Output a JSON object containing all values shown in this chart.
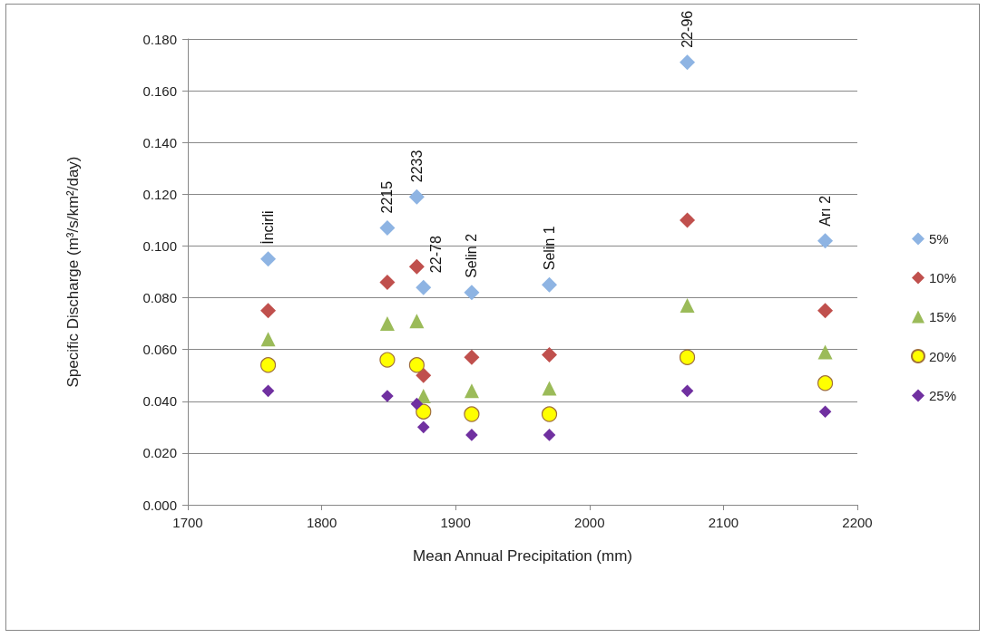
{
  "chart_data": {
    "type": "scatter",
    "xlabel": "Mean Annual Precipitation (mm)",
    "ylabel": "Specific Discharge (m³/s/km²/day)",
    "x": [
      1760,
      1849,
      1871,
      1876,
      1912,
      1970,
      2073,
      2176
    ],
    "series": [
      {
        "name": "5%",
        "color": "#8eb4e3",
        "marker": "diamond",
        "values": [
          0.095,
          0.107,
          0.119,
          0.084,
          0.082,
          0.085,
          0.171,
          0.102
        ]
      },
      {
        "name": "10%",
        "color": "#c0504d",
        "marker": "diamond",
        "values": [
          0.075,
          0.086,
          0.092,
          0.05,
          0.057,
          0.058,
          0.11,
          0.075
        ]
      },
      {
        "name": "15%",
        "color": "#9bbb59",
        "marker": "triangle",
        "values": [
          0.064,
          0.07,
          0.071,
          0.042,
          0.044,
          0.045,
          0.077,
          0.059
        ]
      },
      {
        "name": "20%",
        "color": "#ffff00",
        "marker": "circle",
        "values": [
          0.054,
          0.056,
          0.054,
          0.036,
          0.035,
          0.035,
          0.057,
          0.047
        ]
      },
      {
        "name": "25%",
        "color": "#7030a0",
        "marker": "diamond",
        "values": [
          0.044,
          0.042,
          0.039,
          0.03,
          0.027,
          0.027,
          0.044,
          0.036
        ]
      }
    ],
    "annotations": [
      {
        "text": "İncirli",
        "x": 1760,
        "y": 0.095
      },
      {
        "text": "2215",
        "x": 1849,
        "y": 0.107
      },
      {
        "text": "2233",
        "x": 1871,
        "y": 0.119
      },
      {
        "text": "22-78",
        "x": 1876,
        "y": 0.084
      },
      {
        "text": "Selin 2",
        "x": 1912,
        "y": 0.082
      },
      {
        "text": "Selin 1",
        "x": 1970,
        "y": 0.085
      },
      {
        "text": "22-96",
        "x": 2073,
        "y": 0.171
      },
      {
        "text": "Arı 2",
        "x": 2176,
        "y": 0.102
      }
    ],
    "xlim": [
      1700,
      2200
    ],
    "xticks": [
      1700,
      1800,
      1900,
      2000,
      2100,
      2200
    ],
    "ylim": [
      0,
      0.18
    ],
    "yticks": [
      {
        "value": 0,
        "label": "0.000"
      },
      {
        "value": 0.02,
        "label": "0.020"
      },
      {
        "value": 0.04,
        "label": "0.040"
      },
      {
        "value": 0.06,
        "label": "0.060"
      },
      {
        "value": 0.08,
        "label": "0.080"
      },
      {
        "value": 0.1,
        "label": "0.100"
      },
      {
        "value": 0.12,
        "label": "0.120"
      },
      {
        "value": 0.14,
        "label": "0.140"
      },
      {
        "value": 0.16,
        "label": "0.160"
      },
      {
        "value": 0.18,
        "label": "0.180"
      }
    ],
    "grid": "y",
    "legend": "right"
  }
}
